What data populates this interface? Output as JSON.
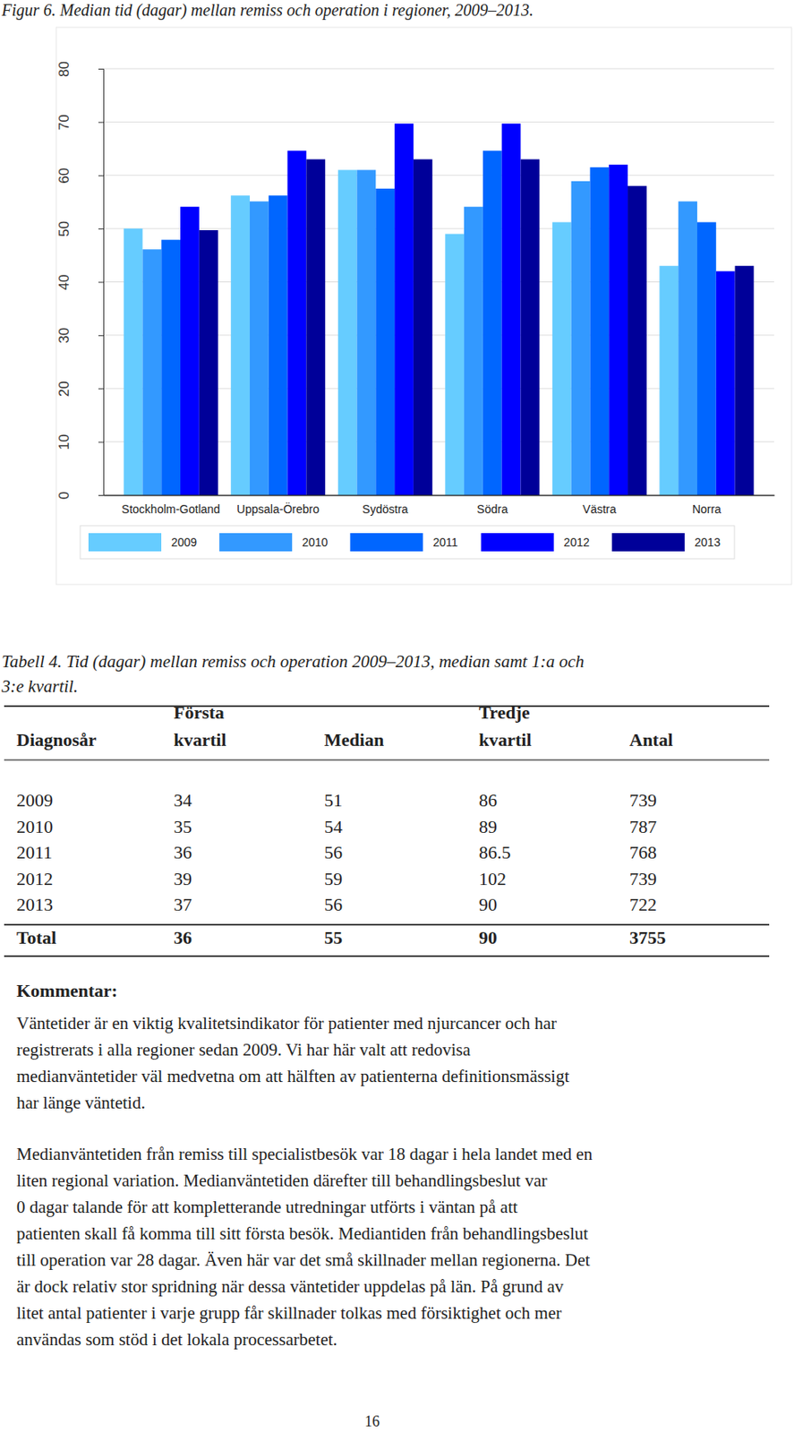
{
  "figure_caption": "Figur 6. Median tid (dagar) mellan remiss och operation i regioner, 2009–2013.",
  "chart_data": {
    "type": "bar",
    "categories": [
      "Stockholm-Gotland",
      "Uppsala-Örebro",
      "Sydöstra",
      "Södra",
      "Västra",
      "Norra"
    ],
    "series": [
      {
        "name": "2009",
        "color": "#66ccff",
        "values": [
          50.0,
          56.2,
          61.0,
          49.0,
          51.2,
          43.0
        ]
      },
      {
        "name": "2010",
        "color": "#3399ff",
        "values": [
          46.1,
          55.1,
          61.0,
          54.1,
          58.9,
          55.1
        ]
      },
      {
        "name": "2011",
        "color": "#0066ff",
        "values": [
          47.9,
          56.2,
          57.5,
          64.6,
          61.5,
          51.2
        ]
      },
      {
        "name": "2012",
        "color": "#0000ff",
        "values": [
          54.1,
          64.6,
          69.7,
          69.7,
          62.0,
          42.0
        ]
      },
      {
        "name": "2013",
        "color": "#000099",
        "values": [
          49.7,
          63.0,
          63.0,
          63.0,
          58.0,
          43.0
        ]
      }
    ],
    "ylim": [
      0,
      80
    ],
    "yticks": [
      0,
      10,
      20,
      30,
      40,
      50,
      60,
      70,
      80
    ],
    "grid": true,
    "legend": "bottom"
  },
  "table": {
    "caption": [
      "Tabell 4. Tid (dagar) mellan remiss och operation 2009–2013, median samt 1:a och",
      "3:e kvartil."
    ],
    "header": [
      [
        "Diagnosår"
      ],
      [
        "Första",
        "kvartil"
      ],
      [
        "Median"
      ],
      [
        "Tredje",
        "kvartil"
      ],
      [
        "Antal"
      ]
    ],
    "rows": [
      [
        "2009",
        34,
        51,
        86,
        739
      ],
      [
        "2010",
        35,
        54,
        89,
        787
      ],
      [
        "2011",
        36,
        56,
        86.5,
        768
      ],
      [
        "2012",
        39,
        59,
        102,
        739
      ],
      [
        "2013",
        37,
        56,
        90,
        722
      ]
    ],
    "total": [
      "Total",
      36,
      55,
      90,
      3755
    ]
  },
  "comment": {
    "heading": "Kommentar:",
    "paragraphs": [
      [
        "Väntetider är en viktig kvalitetsindikator för patienter med njurcancer och har",
        "registrerats i alla regioner sedan 2009. Vi har här valt att redovisa",
        "medianväntetider väl medvetna om att hälften av patienterna definitionsmässigt",
        "har länge väntetid."
      ],
      [
        "Medianväntetiden från remiss till specialistbesök var 18 dagar i hela landet med en",
        "liten regional variation. Medianväntetiden därefter till behandlingsbeslut var",
        "0 dagar talande för att kompletterande utredningar utförts i väntan på att",
        "patienten skall få komma till sitt första besök. Mediantiden från behandlingsbeslut",
        "till operation var 28 dagar. Även här var det små skillnader mellan regionerna. Det",
        "är dock relativ stor spridning när dessa väntetider uppdelas på län. På grund av",
        "litet antal patienter i varje grupp får skillnader tolkas med försiktighet och mer",
        "användas som stöd i det lokala processarbetet."
      ]
    ]
  },
  "page_number": "16"
}
